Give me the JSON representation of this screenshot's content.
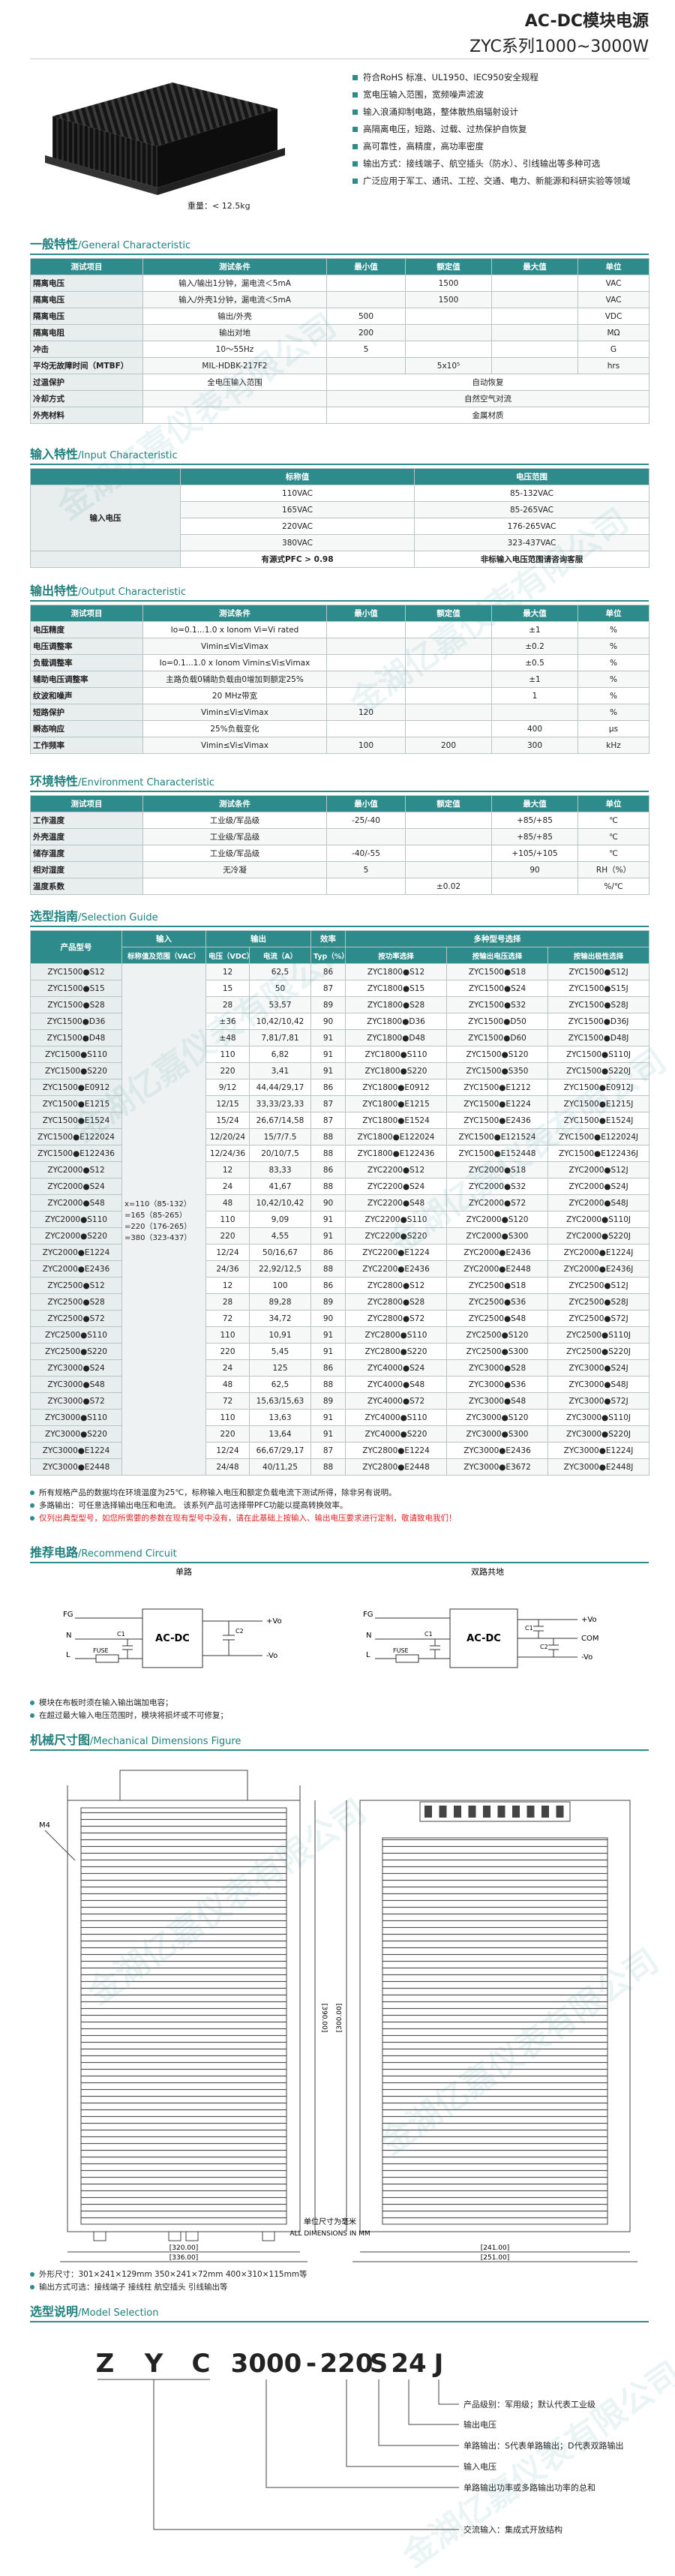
{
  "header": {
    "title": "AC-DC模块电源",
    "subtitle": "ZYC系列1000~3000W"
  },
  "watermark": "金湖亿嘉仪表有限公司",
  "product": {
    "features": [
      "符合RoHS 标准、UL1950、IEC950安全规程",
      "宽电压输入范围，宽频噪声滤波",
      "输入浪涌抑制电路，整体散热扇辐射设计",
      "高隔离电压，短路、过载、过热保护自恢复",
      "高可靠性，高精度，高功率密度",
      "输出方式：接线端子、航空插头（防水）、引线输出等多种可选",
      "广泛应用于军工、通讯、工控、交通、电力、新能源和科研实验等领域"
    ],
    "weight": "重量：< 12.5kg"
  },
  "general": {
    "title": "一般特性",
    "title_en": "/General Characteristic",
    "columns": [
      "测试项目",
      "测试条件",
      "最小值",
      "额定值",
      "最大值",
      "单位"
    ],
    "rows": [
      [
        "隔离电压",
        "输入/输出1分钟，漏电流＜5mA",
        null,
        "1500",
        null,
        "VAC"
      ],
      [
        "隔离电压",
        "输入/外壳1分钟，漏电流＜5mA",
        null,
        "1500",
        null,
        "VAC"
      ],
      [
        "隔离电压",
        "输出/外壳",
        "500",
        null,
        null,
        "VDC"
      ],
      [
        "隔离电阻",
        "输出对地",
        "200",
        null,
        null,
        "MΩ"
      ],
      [
        "冲击",
        "10～55Hz",
        "5",
        null,
        null,
        "G"
      ],
      [
        "平均无故障时间（MTBF）",
        "MIL-HDBK-217F2",
        null,
        "5x10⁵",
        null,
        "hrs"
      ],
      [
        "过温保护",
        "全电压输入范围",
        "自动恢复"
      ],
      [
        "冷却方式",
        null,
        "自然空气对流"
      ],
      [
        "外壳材料",
        null,
        "金属材质"
      ]
    ]
  },
  "input": {
    "title": "输入特性",
    "title_en": "/Input Characteristic",
    "label": "输入电压",
    "columns": [
      "标称值",
      "电压范围"
    ],
    "rows": [
      [
        "110VAC",
        "85-132VAC"
      ],
      [
        "165VAC",
        "85-265VAC"
      ],
      [
        "220VAC",
        "176-265VAC"
      ],
      [
        "380VAC",
        "323-437VAC"
      ]
    ],
    "footer": [
      "有源式PFC > 0.98",
      "非标输入电压范围请咨询客服"
    ]
  },
  "output": {
    "title": "输出特性",
    "title_en": "/Output Characteristic",
    "columns": [
      "测试项目",
      "测试条件",
      "最小值",
      "额定值",
      "最大值",
      "单位"
    ],
    "rows": [
      [
        "电压精度",
        "Io=0.1...1.0 x Ionom Vi=Vi rated",
        null,
        null,
        "±1",
        "%"
      ],
      [
        "电压调整率",
        "Vimin≤Vi≤Vimax",
        null,
        null,
        "±0.2",
        "%"
      ],
      [
        "负载调整率",
        "Io=0.1...1.0 x Ionom Vimin≤Vi≤Vimax",
        null,
        null,
        "±0.5",
        "%"
      ],
      [
        "辅助电压调整率",
        "主路负载0辅助负载由0增加到额定25%",
        null,
        null,
        "±1",
        "%"
      ],
      [
        "纹波和噪声",
        "20 MHz带宽",
        null,
        null,
        "1",
        "%"
      ],
      [
        "短路保护",
        "Vimin≤Vi≤Vimax",
        "120",
        null,
        null,
        "%"
      ],
      [
        "瞬态响应",
        "25%负载变化",
        null,
        null,
        "400",
        "μs"
      ],
      [
        "工作频率",
        "Vimin≤Vi≤Vimax",
        "100",
        "200",
        "300",
        "kHz"
      ]
    ]
  },
  "environment": {
    "title": "环境特性",
    "title_en": "/Environment Characteristic",
    "columns": [
      "测试项目",
      "测试条件",
      "最小值",
      "额定值",
      "最大值",
      "单位"
    ],
    "rows": [
      [
        "工作温度",
        "工业级/军品级",
        "-25/-40",
        null,
        "+85/+85",
        "℃"
      ],
      [
        "外壳温度",
        "工业级/军品级",
        null,
        null,
        "+85/+85",
        "℃"
      ],
      [
        "储存温度",
        "工业级/军品级",
        "-40/-55",
        null,
        "+105/+105",
        "℃"
      ],
      [
        "相对湿度",
        "无冷凝",
        "5",
        null,
        "90",
        "RH（%）"
      ],
      [
        "温度系数",
        null,
        null,
        "±0.02",
        null,
        "%/℃"
      ]
    ]
  },
  "selection": {
    "title": "选型指南",
    "title_en": "/Selection Guide",
    "header": {
      "model": "产品型号",
      "input": "输入",
      "output": "输出",
      "efficiency": "效率",
      "options": "多种型号选择",
      "input_range": "标称值及范围（VAC）",
      "voltage": "电压（VDC）",
      "current": "电流（A）",
      "typ": "Typ（%）",
      "by_power": "按功率选择",
      "by_voltage": "按输出电压选择",
      "by_polarity": "按输出极性选择"
    },
    "input_values": [
      "x=110（85-132）",
      "=165（85-265）",
      "=220（176-265）",
      "=380（323-437）"
    ],
    "rows": [
      [
        "ZYC1500●S12",
        "12",
        "62,5",
        "86",
        "ZYC1800●S12",
        "ZYC1500●S18",
        "ZYC1500●S12J"
      ],
      [
        "ZYC1500●S15",
        "15",
        "50",
        "87",
        "ZYC1800●S15",
        "ZYC1500●S24",
        "ZYC1500●S15J"
      ],
      [
        "ZYC1500●S28",
        "28",
        "53,57",
        "89",
        "ZYC1800●S28",
        "ZYC1500●S32",
        "ZYC1500●S28J"
      ],
      [
        "ZYC1500●D36",
        "±36",
        "10,42/10,42",
        "90",
        "ZYC1800●D36",
        "ZYC1500●D50",
        "ZYC1500●D36J"
      ],
      [
        "ZYC1500●D48",
        "±48",
        "7,81/7,81",
        "91",
        "ZYC1800●D48",
        "ZYC1500●D60",
        "ZYC1500●D48J"
      ],
      [
        "ZYC1500●S110",
        "110",
        "6,82",
        "91",
        "ZYC1800●S110",
        "ZYC1500●S120",
        "ZYC1500●S110J"
      ],
      [
        "ZYC1500●S220",
        "220",
        "3,41",
        "91",
        "ZYC1800●S220",
        "ZYC1500●S350",
        "ZYC1500●S220J"
      ],
      [
        "ZYC1500●E0912",
        "9/12",
        "44,44/29,17",
        "86",
        "ZYC1800●E0912",
        "ZYC1500●E1212",
        "ZYC1500●E0912J"
      ],
      [
        "ZYC1500●E1215",
        "12/15",
        "33,33/23,33",
        "87",
        "ZYC1800●E1215",
        "ZYC1500●E1224",
        "ZYC1500●E1215J"
      ],
      [
        "ZYC1500●E1524",
        "15/24",
        "26,67/14,58",
        "87",
        "ZYC1800●E1524",
        "ZYC1500●E2436",
        "ZYC1500●E1524J"
      ],
      [
        "ZYC1500●E122024",
        "12/20/24",
        "15/7/7.5",
        "88",
        "ZYC1800●E122024",
        "ZYC1500●E121524",
        "ZYC1500●E122024J"
      ],
      [
        "ZYC1500●E122436",
        "12/24/36",
        "20/10/7,5",
        "88",
        "ZYC1800●E122436",
        "ZYC1500●E152448",
        "ZYC1500●E122436J"
      ],
      [
        "ZYC2000●S12",
        "12",
        "83,33",
        "86",
        "ZYC2200●S12",
        "ZYC2000●S18",
        "ZYC2000●S12J"
      ],
      [
        "ZYC2000●S24",
        "24",
        "41,67",
        "88",
        "ZYC2200●S24",
        "ZYC2000●S32",
        "ZYC2000●S24J"
      ],
      [
        "ZYC2000●S48",
        "48",
        "10,42/10,42",
        "90",
        "ZYC2200●S48",
        "ZYC2000●S72",
        "ZYC2000●S48J"
      ],
      [
        "ZYC2000●S110",
        "110",
        "9,09",
        "91",
        "ZYC2200●S110",
        "ZYC2000●S120",
        "ZYC2000●S110J"
      ],
      [
        "ZYC2000●S220",
        "220",
        "4,55",
        "91",
        "ZYC2200●S220",
        "ZYC2000●S300",
        "ZYC2000●S220J"
      ],
      [
        "ZYC2000●E1224",
        "12/24",
        "50/16,67",
        "86",
        "ZYC2200●E1224",
        "ZYC2000●E2436",
        "ZYC2000●E1224J"
      ],
      [
        "ZYC2000●E2436",
        "24/36",
        "22,92/12,5",
        "88",
        "ZYC2200●E2436",
        "ZYC2000●E2448",
        "ZYC2000●E2436J"
      ],
      [
        "ZYC2500●S12",
        "12",
        "100",
        "86",
        "ZYC2800●S12",
        "ZYC2500●S18",
        "ZYC2500●S12J"
      ],
      [
        "ZYC2500●S28",
        "28",
        "89,28",
        "89",
        "ZYC2800●S28",
        "ZYC2500●S36",
        "ZYC2500●S28J"
      ],
      [
        "ZYC2500●S72",
        "72",
        "34,72",
        "90",
        "ZYC2800●S72",
        "ZYC2500●S48",
        "ZYC2500●S72J"
      ],
      [
        "ZYC2500●S110",
        "110",
        "10,91",
        "91",
        "ZYC2800●S110",
        "ZYC2500●S120",
        "ZYC2500●S110J"
      ],
      [
        "ZYC2500●S220",
        "220",
        "5,45",
        "91",
        "ZYC2800●S220",
        "ZYC2500●S300",
        "ZYC2500●S220J"
      ],
      [
        "ZYC3000●S24",
        "24",
        "125",
        "86",
        "ZYC4000●S24",
        "ZYC3000●S28",
        "ZYC3000●S24J"
      ],
      [
        "ZYC3000●S48",
        "48",
        "62,5",
        "88",
        "ZYC4000●S48",
        "ZYC3000●S36",
        "ZYC3000●S48J"
      ],
      [
        "ZYC3000●S72",
        "72",
        "15,63/15,63",
        "89",
        "ZYC4000●S72",
        "ZYC3000●S48",
        "ZYC3000●S72J"
      ],
      [
        "ZYC3000●S110",
        "110",
        "13,63",
        "91",
        "ZYC4000●S110",
        "ZYC3000●S120",
        "ZYC3000●S110J"
      ],
      [
        "ZYC3000●S220",
        "220",
        "13,64",
        "91",
        "ZYC4000●S220",
        "ZYC3000●S300",
        "ZYC3000●S220J"
      ],
      [
        "ZYC3000●E1224",
        "12/24",
        "66,67/29,17",
        "87",
        "ZYC2800●E1224",
        "ZYC3000●E2436",
        "ZYC3000●E1224J"
      ],
      [
        "ZYC3000●E2448",
        "24/48",
        "40/11,25",
        "88",
        "ZYC2800●E2448",
        "ZYC3000●E3672",
        "ZYC3000●E2448J"
      ]
    ],
    "notes": [
      "所有规格产品的数据均在环境温度为25℃，标称输入电压和额定负载电流下测试所得，除非另有说明。",
      "多路输出：可任意选择输出电压和电流。    该系列产品可选择带PFC功能以提高转换效率。",
      "仅列出典型型号，如您所需要的参数在现有型号中没有，请在此基础上按输入、输出电压要求进行定制，敬请致电我们！"
    ]
  },
  "circuit": {
    "title": "推荐电路",
    "title_en": "/Recommend Circuit",
    "single": "单路",
    "dual": "双路共地",
    "module": "AC-DC",
    "fuse": "FUSE",
    "fg": "FG",
    "n": "N",
    "l": "L",
    "c1": "C1",
    "c2": "C2",
    "vo_pos": "+Vo",
    "vo_neg": "-Vo",
    "com": "COM",
    "notes": [
      "模块在布板时须在输入输出端加电容；",
      "在超过最大输入电压范围时，模块将损坏或不可修复；"
    ]
  },
  "mechanical": {
    "title": "机械尺寸图",
    "title_en": "/Mechanical Dimensions Figure",
    "thread": "M4",
    "dims": [
      "[320.00]",
      "[336.00]",
      "[390.00]",
      "[241.00]",
      "[251.00]",
      "[300.00]"
    ],
    "unit_cn": "单位尺寸为毫米",
    "unit_en": "ALL DIMENSIONS IN MM",
    "notes": [
      "外形尺寸：301×241×129mm  350×241×72mm  400×310×115mm等",
      "输出方式可选：接线端子  接线柱  航空插头  引线输出等"
    ]
  },
  "model": {
    "title": "选型说明",
    "title_en": "/Model Selection",
    "parts": [
      "Z",
      "Y",
      "C",
      "3000",
      "-",
      "220",
      "S",
      "24",
      "J"
    ],
    "labels": [
      "产品级别：军用级；默认代表工业级",
      "输出电压",
      "单路输出：S代表单路输出；D代表双路输出",
      "输入电压",
      "单路输出功率或多路输出功率的总和",
      "交流输入：集成式开放结构"
    ]
  }
}
